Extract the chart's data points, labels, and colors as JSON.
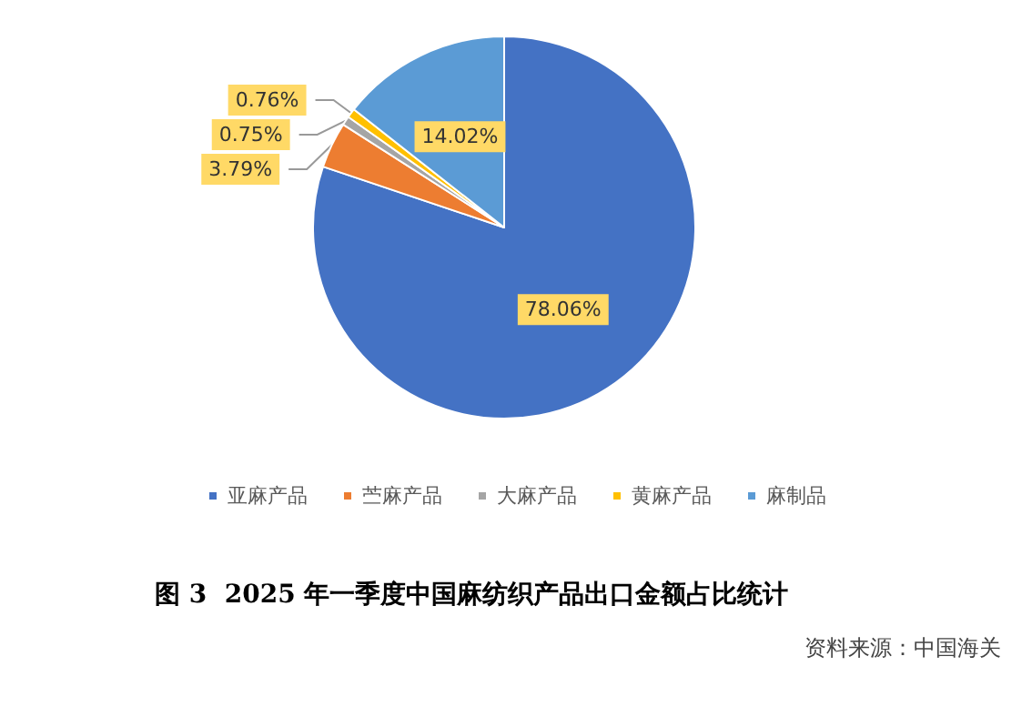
{
  "chart_data": {
    "type": "pie",
    "title": "图 3  2025 年一季度中国麻纺织产品出口金额占比统计",
    "categories": [
      "亚麻产品",
      "苎麻产品",
      "大麻产品",
      "黄麻产品",
      "麻制品"
    ],
    "values": [
      78.06,
      3.79,
      0.75,
      0.76,
      14.02
    ],
    "value_labels": [
      "78.06%",
      "3.79%",
      "0.75%",
      "0.76%",
      "14.02%"
    ],
    "colors": [
      "#4472c4",
      "#ed7d31",
      "#a5a5a5",
      "#ffc000",
      "#5b9bd5"
    ],
    "legend": "bottom",
    "annotations": [
      "资料来源：中国海关"
    ]
  }
}
